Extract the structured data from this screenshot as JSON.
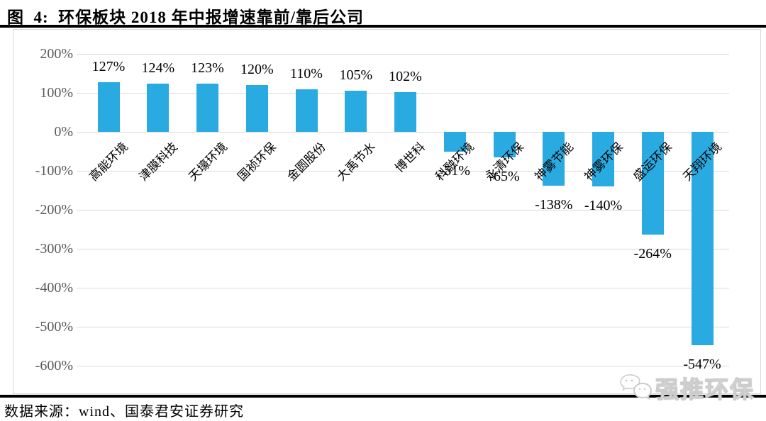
{
  "figure": {
    "title": "图  4:  环保板块 2018 年中报增速靠前/靠后公司",
    "source_note": "数据来源：wind、国泰君安证券研究",
    "watermark_text": "强推环保",
    "watermark_icon": "wechat-bubbles-icon"
  },
  "chart_data": {
    "type": "bar",
    "title": "环保板块2018年中报增速靠前/靠后公司",
    "categories": [
      "高能环境",
      "津膜科技",
      "天壕环境",
      "国祯环保",
      "金圆股份",
      "大禹节水",
      "博世科",
      "科融环境",
      "永清环保",
      "神雾节能",
      "神雾环保",
      "盛运环保",
      "天翔环境"
    ],
    "values": [
      127,
      124,
      123,
      120,
      110,
      105,
      102,
      -51,
      -65,
      -138,
      -140,
      -264,
      -547
    ],
    "data_labels": [
      "127%",
      "124%",
      "123%",
      "120%",
      "110%",
      "105%",
      "102%",
      "-51%",
      "-65%",
      "-138%",
      "-140%",
      "-264%",
      "-547%"
    ],
    "ytick_labels": [
      "200%",
      "100%",
      "0%",
      "-100%",
      "-200%",
      "-300%",
      "-400%",
      "-500%",
      "-600%"
    ],
    "ytick_values": [
      200,
      100,
      0,
      -100,
      -200,
      -300,
      -400,
      -500,
      -600
    ],
    "ylim": [
      -600,
      200
    ],
    "xlabel": "",
    "ylabel": "",
    "grid": true,
    "legend": "none",
    "bar_color": "#29ABE2",
    "grid_color": "#D9D9D9",
    "axis_label_color": "#595959",
    "value_label_color": "#000000"
  }
}
